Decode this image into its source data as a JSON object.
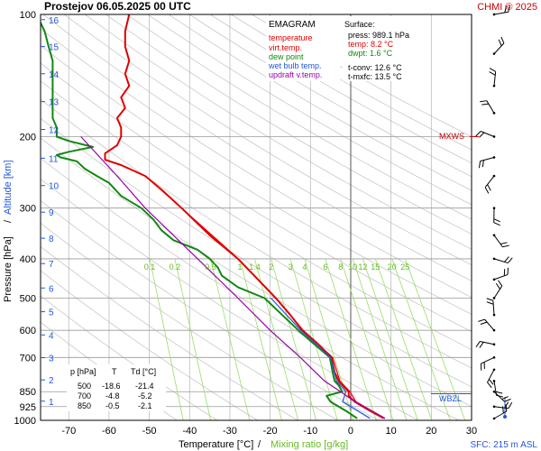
{
  "header": {
    "title": "Prostejov    06.05.2025 00 UTC",
    "credit": "CHMI © 2025"
  },
  "legend": {
    "heading": "EMAGRAM",
    "items": [
      {
        "label": "temperature",
        "color": "#e00000"
      },
      {
        "label": "virt.temp.",
        "color": "#e00000"
      },
      {
        "label": "dew point",
        "color": "#118811"
      },
      {
        "label": "wet bulb temp.",
        "color": "#2255dd"
      },
      {
        "label": "updraft v.temp.",
        "color": "#9900aa"
      }
    ]
  },
  "surface": {
    "heading": "Surface:",
    "press": "press: 989.1 hPa",
    "temp": "temp: 8.2 °C",
    "dwpt": "dwpt: 1.6 °C",
    "tconv": "t-conv: 12.6 °C",
    "tmxfc": "t-mxfc: 13.5 °C"
  },
  "table": {
    "headers": [
      "p [hPa]",
      "T",
      "Td [°C]"
    ],
    "rows": [
      [
        "500",
        "-18.6",
        "-21.4"
      ],
      [
        "700",
        "-4.8",
        "-5.2"
      ],
      [
        "850",
        "-0.5",
        "-2.1"
      ]
    ]
  },
  "markers": {
    "mxws": "MXWS",
    "wbzl": "WBZL"
  },
  "footer": {
    "sfc": "SFC: 215 m ASL"
  },
  "chart_data": {
    "type": "line",
    "title": "Prostejov 06.05.2025 00 UTC",
    "xlabel": "Temperature [°C]",
    "xlabel_extra": "Mixing ratio [g/kg]",
    "ylabel": "Pressure [hPa]",
    "ylabel_extra": "Altitude [km]",
    "xlim": [
      -77,
      30
    ],
    "ylim": [
      1000,
      100
    ],
    "yscale": "log",
    "x_ticks": [
      -70,
      -60,
      -50,
      -40,
      -30,
      -20,
      -10,
      0,
      10,
      20,
      30
    ],
    "p_ticks": [
      100,
      200,
      300,
      400,
      500,
      600,
      700,
      850,
      925,
      1000
    ],
    "altitude_ticks_km": [
      1,
      2,
      3,
      4,
      5,
      6,
      7,
      8,
      9,
      10,
      11,
      12,
      13,
      14,
      15,
      16
    ],
    "altitude_tick_pressures": [
      897,
      795,
      701,
      616,
      540,
      472,
      411,
      356,
      307,
      264,
      226,
      192,
      164,
      140,
      120,
      103
    ],
    "mixing_ratio_labels": [
      "0.1",
      "0.2",
      "0.5",
      "1",
      "1.4",
      "2",
      "3",
      "4",
      "6",
      "8",
      "10",
      "12",
      "15",
      "20",
      "25"
    ],
    "mixing_ratio_values": [
      0.1,
      0.2,
      0.5,
      1,
      1.4,
      2,
      3,
      4,
      6,
      8,
      10,
      12,
      15,
      20,
      25
    ],
    "series": [
      {
        "name": "temperature",
        "color": "#e00000",
        "p": [
          989,
          950,
          925,
          900,
          870,
          850,
          820,
          800,
          760,
          700,
          650,
          600,
          550,
          500,
          450,
          400,
          350,
          300,
          270,
          250,
          235,
          228,
          220,
          210,
          200,
          190,
          180,
          170,
          160,
          150,
          140,
          130,
          120,
          110,
          100
        ],
        "t": [
          8.2,
          5,
          3,
          1,
          -0.5,
          -0.5,
          -2,
          -3,
          -4,
          -4.8,
          -8,
          -12,
          -15,
          -18.6,
          -23,
          -28,
          -35,
          -42,
          -47,
          -51,
          -57,
          -61,
          -61,
          -58,
          -57,
          -57,
          -58,
          -56,
          -57,
          -55,
          -56,
          -55,
          -56,
          -56,
          -55
        ]
      },
      {
        "name": "virt.temp.",
        "color": "#e00000",
        "p": [
          989,
          900,
          850,
          800,
          700,
          600,
          500,
          400,
          300,
          250
        ],
        "t": [
          8.5,
          1.3,
          -0.2,
          -2.7,
          -4.5,
          -11.8,
          -18.5,
          -27.9,
          -42,
          -51
        ]
      },
      {
        "name": "dew point",
        "color": "#118811",
        "p": [
          989,
          950,
          925,
          900,
          870,
          850,
          820,
          800,
          760,
          700,
          650,
          600,
          550,
          500,
          470,
          440,
          420,
          400,
          380,
          360,
          340,
          320,
          300,
          280,
          260,
          250,
          240,
          230,
          225,
          222,
          218,
          212,
          205,
          200,
          190,
          180,
          170,
          160,
          150,
          140,
          130,
          120,
          110,
          100
        ],
        "t": [
          1.6,
          -1,
          -3,
          -5,
          -6,
          -2.1,
          -3,
          -4,
          -4.5,
          -5.2,
          -9,
          -13,
          -17,
          -21.4,
          -28,
          -32,
          -33,
          -35,
          -38,
          -44,
          -47,
          -49,
          -52,
          -57,
          -60,
          -63,
          -66,
          -68,
          -72,
          -73,
          -70,
          -64,
          -70,
          -73,
          -73,
          -74,
          -74,
          -74,
          -74,
          -74,
          -74,
          -75,
          -76,
          -78
        ]
      },
      {
        "name": "wet bulb temp.",
        "color": "#2255dd",
        "p": [
          989,
          900,
          850,
          800,
          700,
          600,
          500
        ],
        "t": [
          4.8,
          -2,
          -1.2,
          -3.5,
          -5,
          -12.4,
          -19.8
        ]
      },
      {
        "name": "updraft v.temp.",
        "color": "#9900aa",
        "p": [
          989,
          900,
          850,
          800,
          700,
          600,
          500,
          400,
          300,
          250,
          200
        ],
        "t": [
          8.5,
          1.0,
          -2.5,
          -6.5,
          -12.5,
          -20,
          -28,
          -38,
          -51,
          -58,
          -67
        ]
      }
    ],
    "wind_barbs_p": [
      990,
      925,
      850,
      800,
      750,
      700,
      650,
      600,
      550,
      500,
      450,
      400,
      350,
      300,
      250,
      225,
      200,
      175,
      150,
      125,
      100
    ],
    "mxws_p": 200,
    "wbzl_p": 860
  }
}
